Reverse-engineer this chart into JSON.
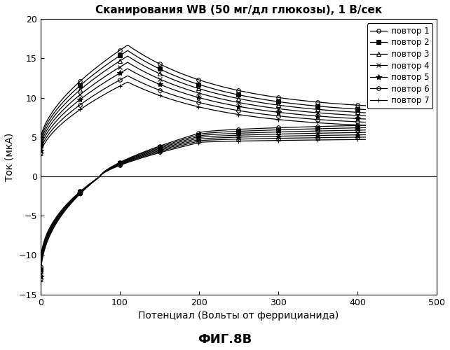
{
  "title": "Сканирования WB (50 мг/дл глюкозы), 1 В/сек",
  "xlabel": "Потенциал (Вольты от феррицианида)",
  "ylabel": "Ток (мкА)",
  "caption": "ФИГ.8В",
  "xlim": [
    0,
    500
  ],
  "ylim": [
    -15,
    20
  ],
  "xticks": [
    0,
    100,
    200,
    300,
    400,
    500
  ],
  "yticks": [
    -15,
    -10,
    -5,
    0,
    5,
    10,
    15,
    20
  ],
  "legend_labels": [
    "повтор 1",
    "повтор 2",
    "повтор 3",
    "повтор 4",
    "повтор 5",
    "повтор 6",
    "повтор 7"
  ],
  "markers": [
    "o",
    "s",
    "^",
    "x",
    "*",
    "o",
    "+"
  ],
  "n_repeats": 7,
  "fwd_peak_x": 110,
  "fwd_peak_y": [
    16.7,
    16.0,
    15.3,
    14.5,
    13.7,
    12.8,
    12.0
  ],
  "fwd_start_y": [
    4.5,
    4.2,
    3.9,
    3.6,
    3.3,
    3.0,
    2.7
  ],
  "fwd_end_y": [
    9.0,
    8.5,
    8.1,
    7.7,
    7.3,
    6.9,
    6.5
  ],
  "rev_start_y": [
    -11.5,
    -11.8,
    -12.1,
    -12.4,
    -12.7,
    -13.0,
    -13.3
  ],
  "rev_zero_x": 75,
  "rev_plateau_y": [
    5.5,
    5.3,
    5.1,
    4.9,
    4.7,
    4.5,
    4.3
  ],
  "rev_end_y": [
    6.5,
    6.2,
    5.9,
    5.6,
    5.3,
    5.0,
    4.7
  ],
  "marker_x_positions": [
    0,
    50,
    100,
    150,
    200,
    250,
    300,
    350,
    400
  ],
  "end_x": 410
}
